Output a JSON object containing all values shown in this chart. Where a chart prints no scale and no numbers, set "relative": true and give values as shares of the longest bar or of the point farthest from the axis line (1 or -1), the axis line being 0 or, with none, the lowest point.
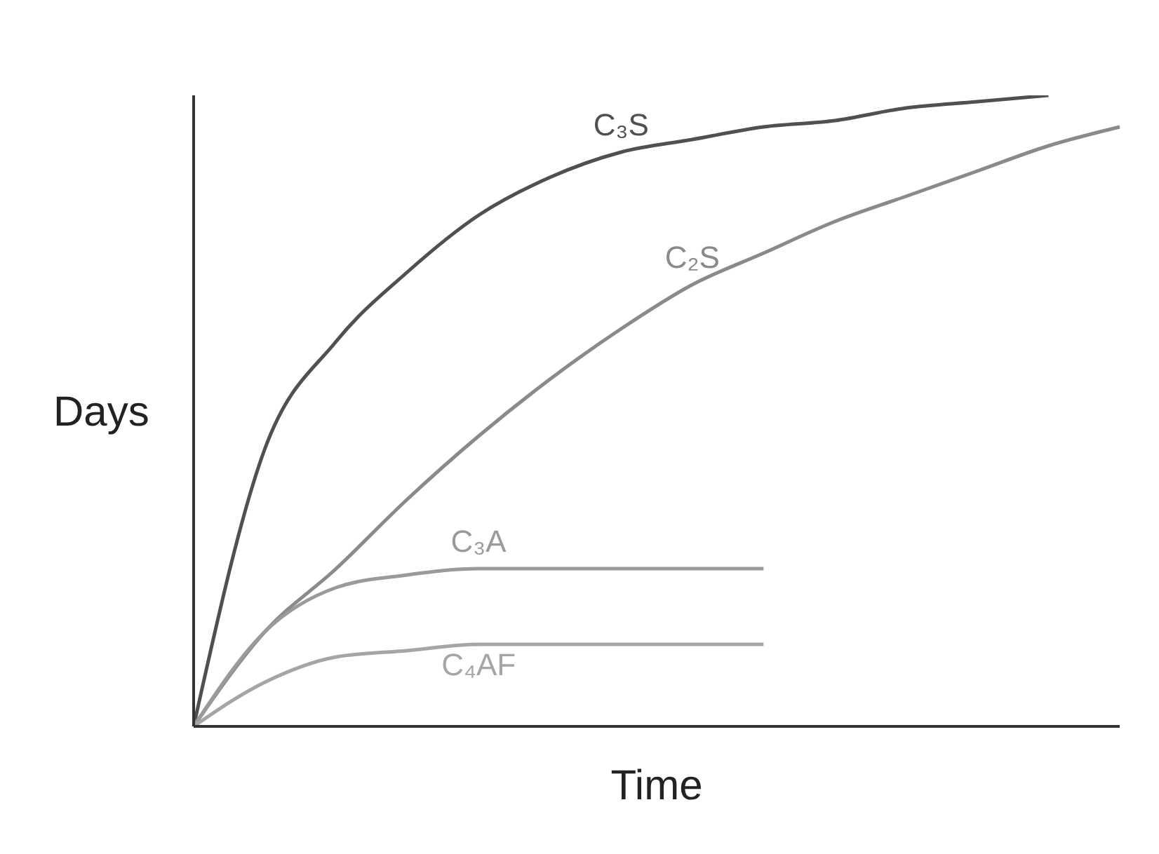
{
  "chart_data": {
    "type": "line",
    "relative": true,
    "xlabel": "Time",
    "ylabel": "Days",
    "legend": false,
    "grid": false,
    "marker": "none",
    "categories": [
      null,
      null,
      null,
      null,
      null,
      null,
      null,
      null,
      null,
      null,
      null,
      null,
      null,
      null
    ],
    "series": [
      {
        "name": "C₃S",
        "color": "#505050",
        "values": [
          0,
          0.44,
          0.61,
          0.72,
          0.81,
          0.87,
          0.91,
          0.93,
          0.95,
          0.96,
          0.98,
          0.99,
          1,
          null
        ]
      },
      {
        "name": "C₂S",
        "color": "#8a8a8a",
        "values": [
          0,
          0.15,
          0.25,
          0.36,
          0.46,
          0.55,
          0.63,
          0.7,
          0.75,
          0.8,
          0.84,
          0.88,
          0.92,
          0.95
        ]
      },
      {
        "name": "C₃A",
        "color": "#9a9a9a",
        "values": [
          0,
          0.15,
          0.22,
          0.24,
          0.25,
          0.25,
          0.25,
          0.25,
          0.25,
          null,
          null,
          null,
          null,
          null
        ]
      },
      {
        "name": "C₄AF",
        "color": "#a5a5a5",
        "values": [
          0,
          0.07,
          0.11,
          0.12,
          0.13,
          0.13,
          0.13,
          0.13,
          0.13,
          null,
          null,
          null,
          null,
          null
        ]
      }
    ]
  }
}
